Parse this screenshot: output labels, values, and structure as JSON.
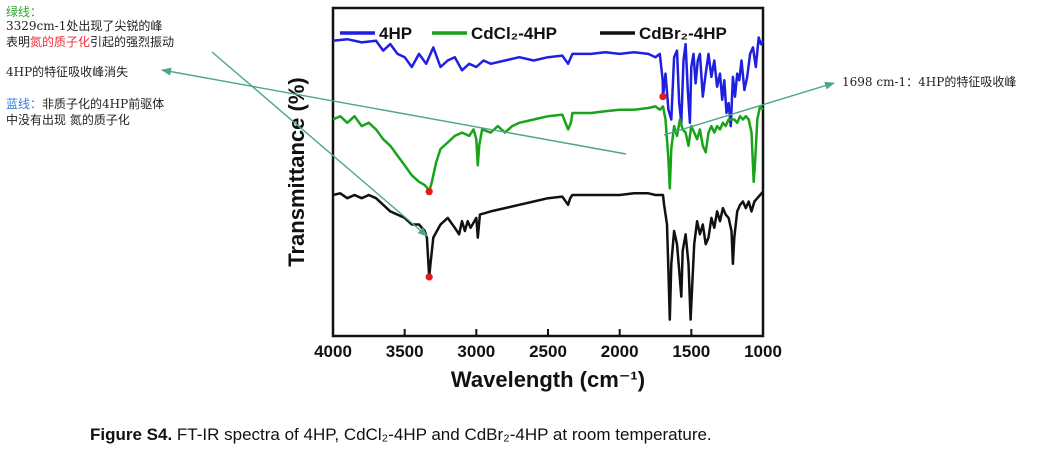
{
  "annotations": {
    "left": {
      "green_heading": "绿线：",
      "line1": "3329cm-1处出现了尖锐的峰",
      "line2_pre": "表明",
      "line2_highlight": "氮的质子化",
      "line2_post": "引起的强烈振动",
      "line3": "4HP的特征吸收峰消失",
      "blue_heading": "蓝线：",
      "blue_text": "非质子化的4HP前驱体",
      "line5": "中没有出现 氮的质子化"
    },
    "right": {
      "text": "1698 cm-1：4HP的特征吸收峰"
    },
    "colors": {
      "green_heading": "#2fa82f",
      "highlight": "#e8303a",
      "blue_heading": "#3a7be0",
      "arrow": "#4aa58a",
      "marker": "#e41a1c"
    }
  },
  "caption": {
    "label": "Figure S4.",
    "text": " FT-IR spectra of 4HP, CdCl₂-4HP and CdBr₂-4HP at room temperature."
  },
  "chart_data": {
    "type": "line",
    "title": "",
    "xlabel": "Wavelength (cm⁻¹)",
    "ylabel": "Transmittance (%)",
    "xlim": [
      4000,
      1000
    ],
    "x_reversed": true,
    "xticks": [
      4000,
      3500,
      3000,
      2500,
      2000,
      1500,
      1000
    ],
    "y_ticks_shown": false,
    "ylim": [
      0,
      100
    ],
    "legend_position": "top",
    "series": [
      {
        "name": "4HP",
        "color": "#1f1fe0",
        "points": [
          [
            4000,
            90
          ],
          [
            3900,
            90.5
          ],
          [
            3800,
            89.5
          ],
          [
            3700,
            90
          ],
          [
            3650,
            87
          ],
          [
            3600,
            89
          ],
          [
            3550,
            86
          ],
          [
            3500,
            85
          ],
          [
            3450,
            82
          ],
          [
            3400,
            86
          ],
          [
            3350,
            83
          ],
          [
            3300,
            88
          ],
          [
            3250,
            82
          ],
          [
            3200,
            84
          ],
          [
            3150,
            85
          ],
          [
            3100,
            81
          ],
          [
            3050,
            83
          ],
          [
            3000,
            82
          ],
          [
            2950,
            84
          ],
          [
            2900,
            83
          ],
          [
            2800,
            84
          ],
          [
            2700,
            85
          ],
          [
            2600,
            84
          ],
          [
            2500,
            85
          ],
          [
            2400,
            85.5
          ],
          [
            2360,
            83
          ],
          [
            2330,
            86
          ],
          [
            2200,
            86
          ],
          [
            2100,
            86.5
          ],
          [
            2000,
            86
          ],
          [
            1900,
            86.5
          ],
          [
            1800,
            86
          ],
          [
            1750,
            85
          ],
          [
            1720,
            86
          ],
          [
            1700,
            78
          ],
          [
            1698,
            73
          ],
          [
            1680,
            80
          ],
          [
            1660,
            69
          ],
          [
            1640,
            66
          ],
          [
            1620,
            85
          ],
          [
            1600,
            87
          ],
          [
            1585,
            71
          ],
          [
            1570,
            65
          ],
          [
            1555,
            84
          ],
          [
            1540,
            89
          ],
          [
            1525,
            75
          ],
          [
            1510,
            65
          ],
          [
            1500,
            82
          ],
          [
            1485,
            86
          ],
          [
            1470,
            77
          ],
          [
            1455,
            84
          ],
          [
            1440,
            86
          ],
          [
            1420,
            73
          ],
          [
            1400,
            80
          ],
          [
            1380,
            86
          ],
          [
            1360,
            79
          ],
          [
            1340,
            84
          ],
          [
            1320,
            76
          ],
          [
            1300,
            80
          ],
          [
            1285,
            72
          ],
          [
            1270,
            78
          ],
          [
            1255,
            68
          ],
          [
            1240,
            71
          ],
          [
            1225,
            64
          ],
          [
            1210,
            79
          ],
          [
            1195,
            73
          ],
          [
            1180,
            80
          ],
          [
            1165,
            78
          ],
          [
            1150,
            84
          ],
          [
            1130,
            75
          ],
          [
            1110,
            79
          ],
          [
            1090,
            86
          ],
          [
            1070,
            88
          ],
          [
            1050,
            82
          ],
          [
            1030,
            91
          ],
          [
            1015,
            89
          ],
          [
            1000,
            90
          ]
        ]
      },
      {
        "name": "CdCl₂-4HP",
        "color": "#1aa31a",
        "points": [
          [
            4000,
            66
          ],
          [
            3950,
            67
          ],
          [
            3900,
            65
          ],
          [
            3850,
            67
          ],
          [
            3800,
            64
          ],
          [
            3750,
            65
          ],
          [
            3700,
            63
          ],
          [
            3650,
            60
          ],
          [
            3600,
            58
          ],
          [
            3550,
            55
          ],
          [
            3500,
            52
          ],
          [
            3450,
            49
          ],
          [
            3400,
            47
          ],
          [
            3360,
            46
          ],
          [
            3340,
            45
          ],
          [
            3329,
            44
          ],
          [
            3310,
            47
          ],
          [
            3280,
            53
          ],
          [
            3250,
            57
          ],
          [
            3200,
            59
          ],
          [
            3150,
            61
          ],
          [
            3100,
            62
          ],
          [
            3050,
            61
          ],
          [
            3020,
            63
          ],
          [
            3000,
            60
          ],
          [
            2990,
            52
          ],
          [
            2980,
            58
          ],
          [
            2960,
            63
          ],
          [
            2900,
            62
          ],
          [
            2850,
            64
          ],
          [
            2800,
            62
          ],
          [
            2750,
            64
          ],
          [
            2700,
            65
          ],
          [
            2600,
            66
          ],
          [
            2500,
            67
          ],
          [
            2400,
            67.5
          ],
          [
            2360,
            63
          ],
          [
            2340,
            65
          ],
          [
            2330,
            68
          ],
          [
            2200,
            68
          ],
          [
            2100,
            68.5
          ],
          [
            2000,
            69
          ],
          [
            1900,
            69
          ],
          [
            1800,
            69.5
          ],
          [
            1750,
            70
          ],
          [
            1720,
            69
          ],
          [
            1698,
            70
          ],
          [
            1680,
            66
          ],
          [
            1660,
            54
          ],
          [
            1650,
            45
          ],
          [
            1640,
            57
          ],
          [
            1620,
            64
          ],
          [
            1600,
            61
          ],
          [
            1580,
            66
          ],
          [
            1560,
            63
          ],
          [
            1540,
            62
          ],
          [
            1520,
            58
          ],
          [
            1500,
            64
          ],
          [
            1480,
            62
          ],
          [
            1460,
            60
          ],
          [
            1440,
            63
          ],
          [
            1420,
            58
          ],
          [
            1400,
            56
          ],
          [
            1380,
            62
          ],
          [
            1360,
            64
          ],
          [
            1340,
            62
          ],
          [
            1320,
            64
          ],
          [
            1300,
            63
          ],
          [
            1280,
            65
          ],
          [
            1260,
            64
          ],
          [
            1240,
            66
          ],
          [
            1220,
            66
          ],
          [
            1200,
            66
          ],
          [
            1180,
            65
          ],
          [
            1160,
            67
          ],
          [
            1140,
            66
          ],
          [
            1120,
            67
          ],
          [
            1100,
            66
          ],
          [
            1080,
            62
          ],
          [
            1065,
            47
          ],
          [
            1055,
            53
          ],
          [
            1040,
            66
          ],
          [
            1020,
            70
          ],
          [
            1000,
            69
          ]
        ]
      },
      {
        "name": "CdBr₂-4HP",
        "color": "#111111",
        "points": [
          [
            4000,
            43
          ],
          [
            3950,
            43.5
          ],
          [
            3900,
            42
          ],
          [
            3850,
            43
          ],
          [
            3800,
            42
          ],
          [
            3750,
            43
          ],
          [
            3700,
            42
          ],
          [
            3650,
            40
          ],
          [
            3600,
            38
          ],
          [
            3550,
            37
          ],
          [
            3500,
            36
          ],
          [
            3450,
            34
          ],
          [
            3400,
            34
          ],
          [
            3360,
            32
          ],
          [
            3345,
            30
          ],
          [
            3329,
            18
          ],
          [
            3320,
            22
          ],
          [
            3300,
            30
          ],
          [
            3250,
            34
          ],
          [
            3200,
            36
          ],
          [
            3150,
            33
          ],
          [
            3120,
            31
          ],
          [
            3100,
            35
          ],
          [
            3080,
            32
          ],
          [
            3060,
            35
          ],
          [
            3040,
            33
          ],
          [
            3000,
            36
          ],
          [
            2990,
            30
          ],
          [
            2975,
            37
          ],
          [
            2900,
            38
          ],
          [
            2800,
            39
          ],
          [
            2700,
            40
          ],
          [
            2600,
            41
          ],
          [
            2500,
            42
          ],
          [
            2400,
            42.5
          ],
          [
            2360,
            40
          ],
          [
            2345,
            42
          ],
          [
            2330,
            43
          ],
          [
            2200,
            43
          ],
          [
            2100,
            43
          ],
          [
            2000,
            43
          ],
          [
            1900,
            43.5
          ],
          [
            1800,
            43.5
          ],
          [
            1750,
            43
          ],
          [
            1720,
            43
          ],
          [
            1698,
            43
          ],
          [
            1690,
            40
          ],
          [
            1670,
            34
          ],
          [
            1660,
            20
          ],
          [
            1650,
            5
          ],
          [
            1640,
            22
          ],
          [
            1620,
            32
          ],
          [
            1600,
            28
          ],
          [
            1585,
            20
          ],
          [
            1570,
            12
          ],
          [
            1560,
            26
          ],
          [
            1540,
            31
          ],
          [
            1520,
            22
          ],
          [
            1505,
            5
          ],
          [
            1495,
            14
          ],
          [
            1480,
            28
          ],
          [
            1460,
            35
          ],
          [
            1440,
            31
          ],
          [
            1420,
            34
          ],
          [
            1400,
            28
          ],
          [
            1380,
            30
          ],
          [
            1360,
            36
          ],
          [
            1340,
            33
          ],
          [
            1320,
            38
          ],
          [
            1300,
            35
          ],
          [
            1280,
            39
          ],
          [
            1260,
            37
          ],
          [
            1240,
            36
          ],
          [
            1220,
            32
          ],
          [
            1210,
            22
          ],
          [
            1200,
            30
          ],
          [
            1180,
            38
          ],
          [
            1160,
            40
          ],
          [
            1140,
            41
          ],
          [
            1120,
            39
          ],
          [
            1100,
            41
          ],
          [
            1080,
            38
          ],
          [
            1060,
            41
          ],
          [
            1040,
            42
          ],
          [
            1020,
            43
          ],
          [
            1000,
            44
          ]
        ]
      }
    ],
    "markers": [
      {
        "series": "4HP",
        "x": 1698,
        "y": 73
      },
      {
        "series": "CdCl₂-4HP",
        "x": 3329,
        "y": 44
      },
      {
        "series": "CdBr₂-4HP",
        "x": 3329,
        "y": 18
      }
    ]
  }
}
